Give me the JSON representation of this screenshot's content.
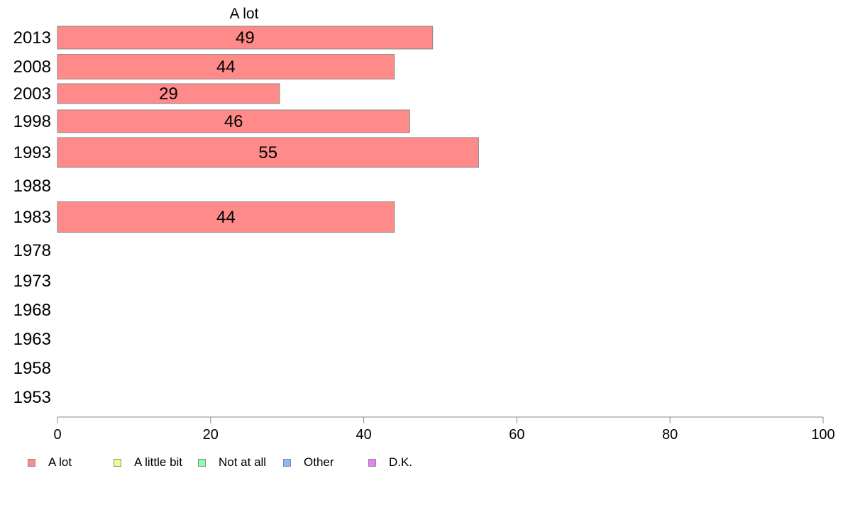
{
  "chart_data": {
    "type": "bar",
    "orientation": "horizontal",
    "header": "A lot",
    "categories": [
      "2013",
      "2008",
      "2003",
      "1998",
      "1993",
      "1988",
      "1983",
      "1978",
      "1973",
      "1968",
      "1963",
      "1958",
      "1953"
    ],
    "series": [
      {
        "name": "A lot",
        "values": [
          49,
          44,
          29,
          46,
          55,
          null,
          44,
          null,
          null,
          null,
          null,
          null,
          null
        ]
      }
    ],
    "xlim": [
      0,
      100
    ],
    "xticks": [
      0,
      20,
      40,
      60,
      80,
      100
    ],
    "grid": false,
    "legend_position": "bottom-left"
  },
  "legend": [
    {
      "label": "A lot",
      "color": "#ff8a8a"
    },
    {
      "label": "A little bit",
      "color": "#eaff8a"
    },
    {
      "label": "Not at all",
      "color": "#8affb0"
    },
    {
      "label": "Other",
      "color": "#8ab8ff"
    },
    {
      "label": "D.K.",
      "color": "#ee7cff"
    }
  ]
}
